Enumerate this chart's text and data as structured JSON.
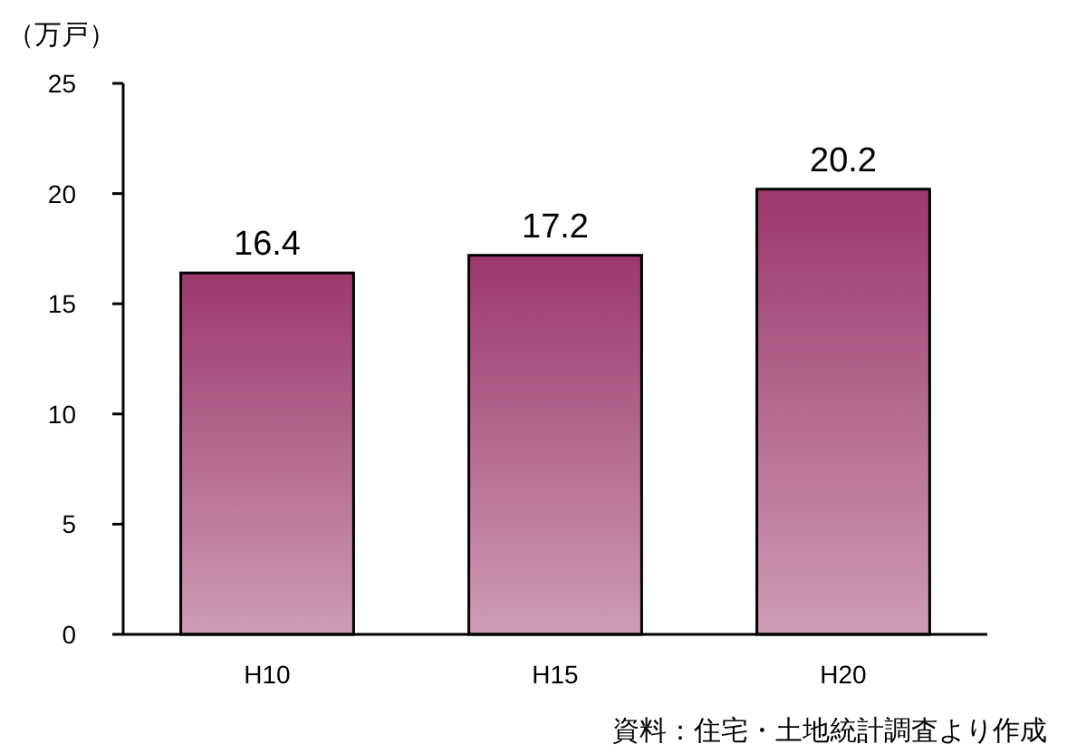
{
  "chart_data": {
    "type": "bar",
    "ylabel": "（万戸）",
    "categories": [
      "H10",
      "H15",
      "H20"
    ],
    "values": [
      16.4,
      17.2,
      20.2
    ],
    "color": "#9c386c",
    "ylim": [
      0,
      25
    ],
    "yticks": [
      0,
      5,
      10,
      15,
      20,
      25
    ],
    "data_labels": true,
    "grid": false,
    "annotations": [
      "資料：住宅・土地統計調査より作成"
    ]
  }
}
